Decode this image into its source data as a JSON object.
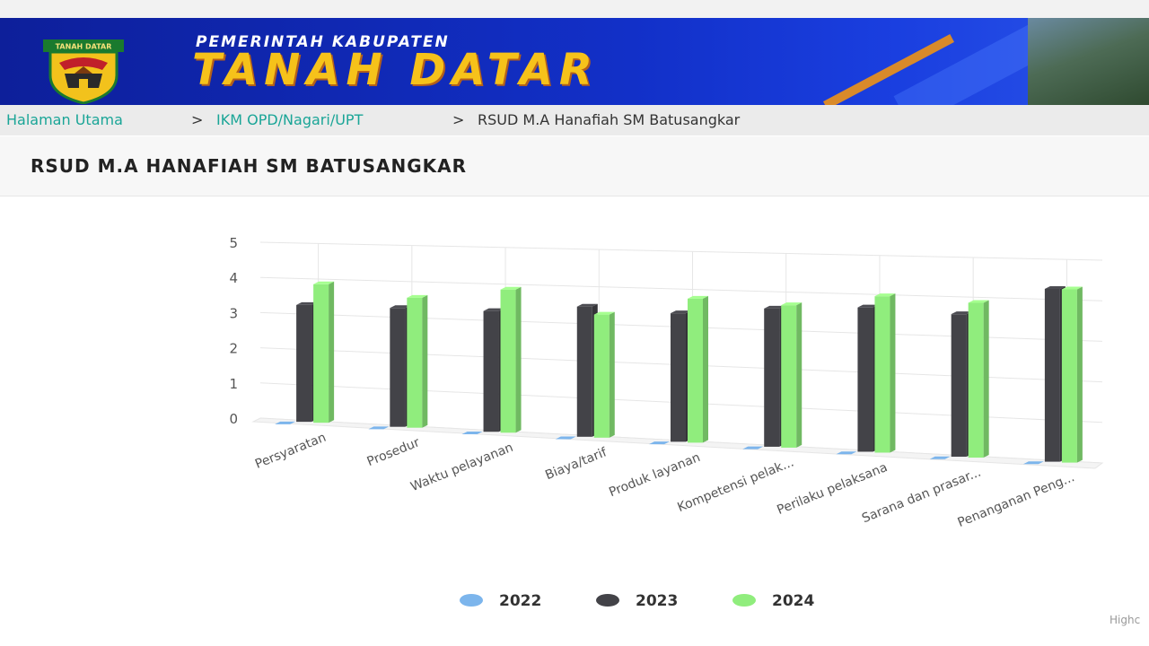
{
  "header": {
    "gov_label": "PEMERINTAH KABUPATEN",
    "region_name": "TANAH DATAR",
    "logo_text": "TANAH DATAR"
  },
  "breadcrumb": {
    "home": "Halaman Utama",
    "parent": "IKM OPD/Nagari/UPT",
    "current": "RSUD M.A Hanafiah SM Batusangkar",
    "separator": ">"
  },
  "page_title": "RSUD M.A HANAFIAH SM BATUSANGKAR",
  "credits": "Highc",
  "colors": {
    "s2022": "#7cb5ec",
    "s2023": "#434348",
    "s2024": "#90ed7d",
    "grid": "#e6e6e6",
    "breadcrumb_link": "#1aa597"
  },
  "chart_data": {
    "type": "bar",
    "title": "",
    "xlabel": "",
    "ylabel": "",
    "ylim": [
      0,
      5
    ],
    "yticks": [
      0,
      1,
      2,
      3,
      4,
      5
    ],
    "grid": true,
    "legend_position": "bottom-center",
    "categories": [
      "Persyaratan",
      "Prosedur",
      "Waktu pelayanan",
      "Biaya/tarif",
      "Produk layanan",
      "Kompetensi pelak...",
      "Perilaku pelaksana",
      "Sarana dan prasar...",
      "Penanganan Peng..."
    ],
    "series": [
      {
        "name": "2022",
        "color": "#7cb5ec",
        "values": [
          0,
          0,
          0,
          0,
          0,
          0,
          0,
          0,
          0
        ]
      },
      {
        "name": "2023",
        "color": "#434348",
        "values": [
          3.3,
          3.3,
          3.3,
          3.5,
          3.4,
          3.6,
          3.7,
          3.6,
          4.3
        ]
      },
      {
        "name": "2024",
        "color": "#90ed7d",
        "values": [
          3.9,
          3.6,
          3.9,
          3.3,
          3.8,
          3.7,
          4.0,
          3.9,
          4.3
        ]
      }
    ]
  }
}
